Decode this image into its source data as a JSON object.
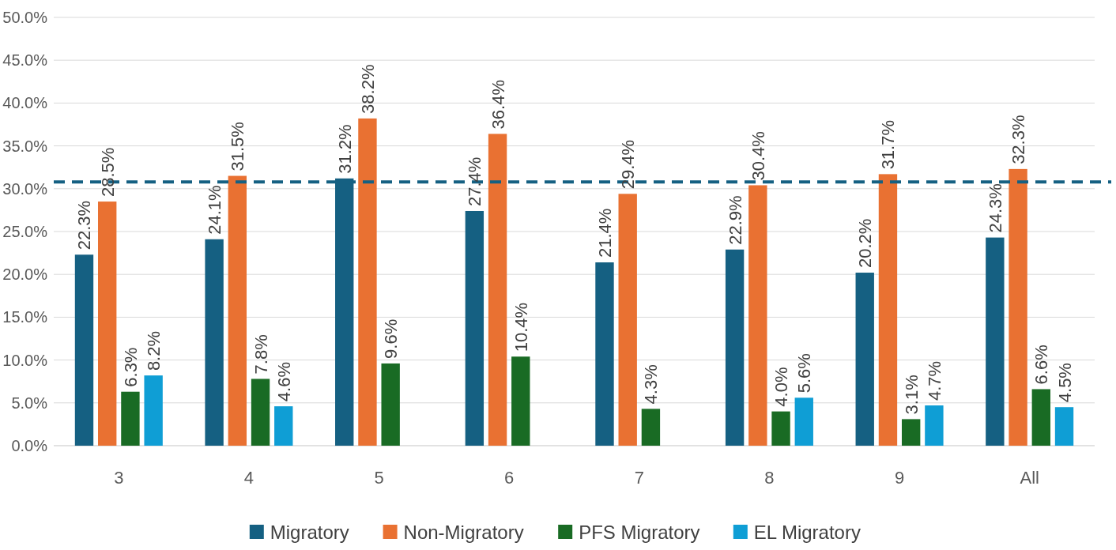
{
  "chart_data": {
    "type": "bar",
    "categories": [
      "3",
      "4",
      "5",
      "6",
      "7",
      "8",
      "9",
      "All"
    ],
    "series": [
      {
        "name": "Migratory",
        "color": "#156082",
        "values": [
          22.3,
          24.1,
          31.2,
          27.4,
          21.4,
          22.9,
          20.2,
          24.3
        ],
        "value_labels": [
          "22.3%",
          "24.1%",
          "31.2%",
          "27.4%",
          "21.4%",
          "22.9%",
          "20.2%",
          "24.3%"
        ]
      },
      {
        "name": "Non-Migratory",
        "color": "#e97132",
        "values": [
          28.5,
          31.5,
          38.2,
          36.4,
          29.4,
          30.4,
          31.7,
          32.3
        ],
        "value_labels": [
          "28.5%",
          "31.5%",
          "38.2%",
          "36.4%",
          "29.4%",
          "30.4%",
          "31.7%",
          "32.3%"
        ]
      },
      {
        "name": "PFS Migratory",
        "color": "#196b24",
        "values": [
          6.3,
          7.8,
          9.6,
          10.4,
          4.3,
          4.0,
          3.1,
          6.6
        ],
        "value_labels": [
          "6.3%",
          "7.8%",
          "9.6%",
          "10.4%",
          "4.3%",
          "4.0%",
          "3.1%",
          "6.6%"
        ]
      },
      {
        "name": "EL Migratory",
        "color": "#0f9ed5",
        "values": [
          8.2,
          4.6,
          null,
          null,
          null,
          5.6,
          4.7,
          4.5
        ],
        "value_labels": [
          "8.2%",
          "4.6%",
          null,
          null,
          null,
          "5.6%",
          "4.7%",
          "4.5%"
        ]
      }
    ],
    "ylim": [
      0,
      50
    ],
    "yticks": [
      {
        "value": 0,
        "label": "0.0%"
      },
      {
        "value": 5,
        "label": "5.0%"
      },
      {
        "value": 10,
        "label": "10.0%"
      },
      {
        "value": 15,
        "label": "15.0%"
      },
      {
        "value": 20,
        "label": "20.0%"
      },
      {
        "value": 25,
        "label": "25.0%"
      },
      {
        "value": 30,
        "label": "30.0%"
      },
      {
        "value": 35,
        "label": "35.0%"
      },
      {
        "value": 40,
        "label": "40.0%"
      },
      {
        "value": 45,
        "label": "45.0%"
      },
      {
        "value": 50,
        "label": "50.0%"
      }
    ],
    "grid": "y",
    "legend": "bottom",
    "ref_lines": [
      {
        "axis": "y",
        "value": 30.8,
        "color": "#156082",
        "line_style": "dashed"
      }
    ]
  }
}
